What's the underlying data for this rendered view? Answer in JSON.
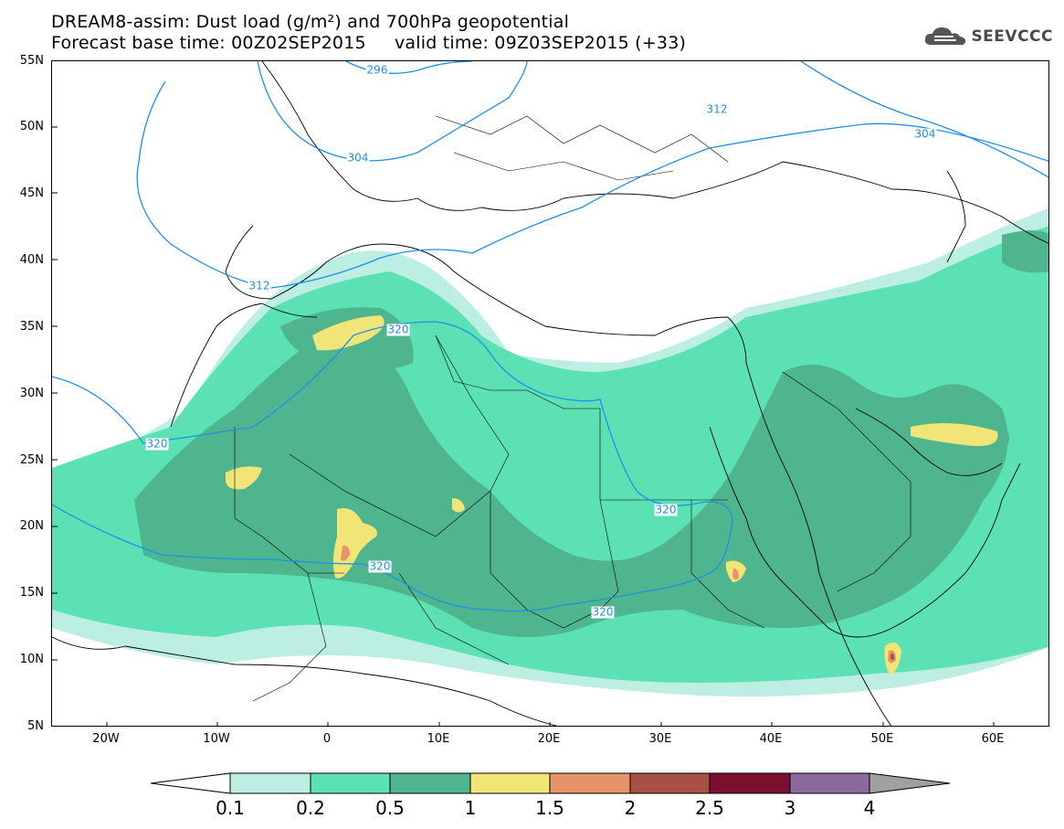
{
  "title": {
    "line1": "DREAM8-assim: Dust load (g/m²) and 700hPa geopotential",
    "line2": "Forecast base time: 00Z02SEP2015     valid time: 09Z03SEP2015 (+33)"
  },
  "logo": {
    "text": "SEEVCCC",
    "icon": "cloud-logo-icon"
  },
  "lat_labels": [
    "55N",
    "50N",
    "45N",
    "40N",
    "35N",
    "30N",
    "25N",
    "20N",
    "15N",
    "10N",
    "5N"
  ],
  "lon_labels": [
    "20W",
    "10W",
    "0",
    "10E",
    "20E",
    "30E",
    "40E",
    "50E",
    "60E"
  ],
  "contour_labels": [
    "296",
    "304",
    "312",
    "304",
    "312",
    "320",
    "320",
    "320",
    "320",
    "320"
  ],
  "colorbar": {
    "labels": [
      "0.1",
      "0.2",
      "0.5",
      "1",
      "1.5",
      "2",
      "2.5",
      "3",
      "4"
    ],
    "colors": [
      "#bdeee3",
      "#5ce1b4",
      "#4fb58e",
      "#f2e577",
      "#e6936b",
      "#a85043",
      "#7a0f2e",
      "#8a6a9c",
      "#a0a0a0"
    ]
  },
  "colors": {
    "contour": "#1e90e6",
    "dust_01": "#bdeee3",
    "dust_02": "#5ce1b4",
    "dust_05": "#4fb58e",
    "dust_1": "#f2e577",
    "dust_15": "#e6936b",
    "dust_2": "#a85043"
  }
}
